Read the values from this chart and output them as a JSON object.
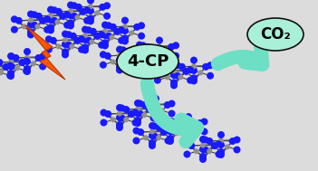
{
  "bg_color": "#dcdcdc",
  "label_4cp": "4-CP",
  "label_co2": "CO₂",
  "label_bg_color": "#aaf0d8",
  "label_border_color": "#111111",
  "arrow_color": "#6ddfc4",
  "node_C_color": "#909090",
  "node_N_color": "#1a1aff",
  "node_H_color": "#d0d0d0",
  "bond_color": "#444444",
  "lightning_fill": "#ff5500",
  "lightning_edge": "#bb3300"
}
